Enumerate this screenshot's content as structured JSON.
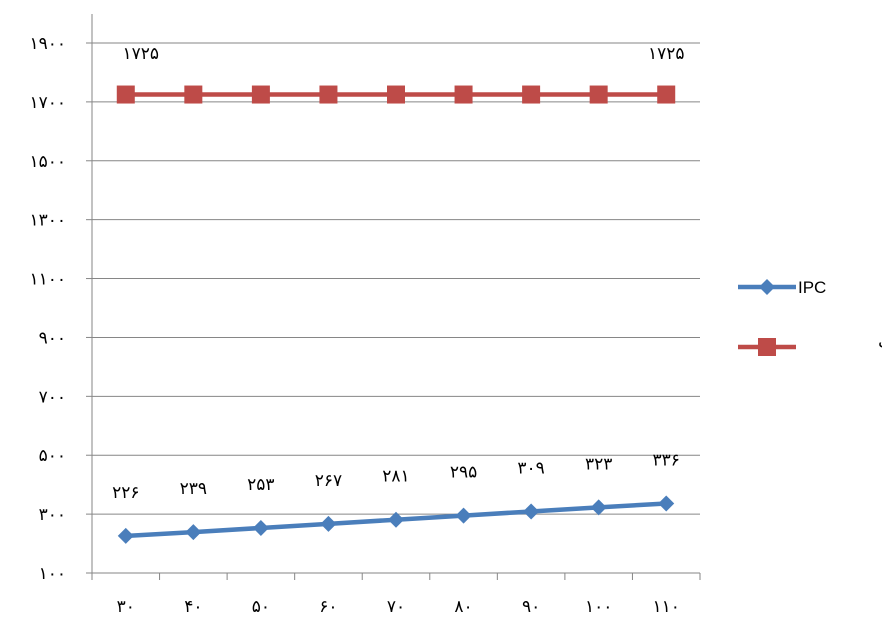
{
  "chart_data": {
    "type": "line",
    "categories": [
      "۳۰",
      "۴۰",
      "۵۰",
      "۶۰",
      "۷۰",
      "۸۰",
      "۹۰",
      "۱۰۰",
      "۱۱۰"
    ],
    "y_tick_labels": [
      "۱۰۰",
      "۳۰۰",
      "۵۰۰",
      "۷۰۰",
      "۹۰۰",
      "۱۱۰۰",
      "۱۳۰۰",
      "۱۵۰۰",
      "۱۷۰۰",
      "۱۹۰۰"
    ],
    "y_ticks": [
      100,
      300,
      500,
      700,
      900,
      1100,
      1300,
      1500,
      1700,
      1900
    ],
    "ylim": [
      100,
      1900
    ],
    "grid": true,
    "legend_position": "right",
    "series": [
      {
        "name": "IPC",
        "color": "#4A7EBB",
        "marker": "diamond",
        "values": [
          226,
          239,
          253,
          267,
          281,
          295,
          309,
          323,
          336
        ],
        "labels": [
          "۲۲۶",
          "۲۳۹",
          "۲۵۳",
          "۲۶۷",
          "۲۸۱",
          "۲۹۵",
          "۳۰۹",
          "۳۲۳",
          "۳۳۶"
        ]
      },
      {
        "name": "بیع متقابل",
        "color": "#BE4B48",
        "marker": "square",
        "values": [
          1725,
          1725,
          1725,
          1725,
          1725,
          1725,
          1725,
          1725,
          1725
        ],
        "labels": [
          "۱۷۲۵",
          "",
          "",
          "",
          "",
          "",
          "",
          "",
          "۱۷۲۵"
        ]
      }
    ]
  }
}
